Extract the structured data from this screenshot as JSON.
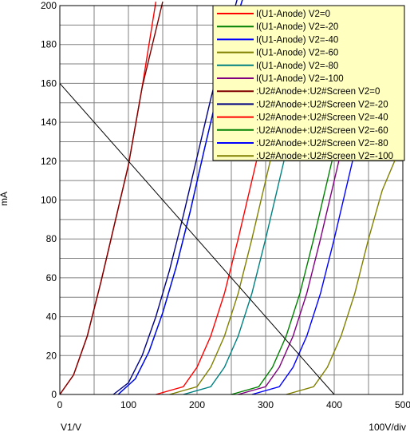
{
  "chart_data": {
    "type": "line",
    "title": "",
    "xlabel": "V1/V",
    "ylabel": "mA",
    "scale_label": "100V/div",
    "xlim": [
      0,
      500
    ],
    "ylim": [
      0,
      200
    ],
    "x_ticks": [
      "0",
      "100",
      "200",
      "300",
      "400",
      "500"
    ],
    "y_ticks": [
      "0",
      "20",
      "40",
      "60",
      "80",
      "100",
      "120",
      "140",
      "160",
      "180",
      "200"
    ],
    "grid": true,
    "legend_position": "top-right",
    "load_line": {
      "x": [
        0,
        400
      ],
      "y": [
        160,
        0
      ]
    },
    "series": [
      {
        "name": "I(U1-Anode) V2=0",
        "color": "#ff0000",
        "x": [
          0,
          20,
          40,
          60,
          80,
          100,
          120,
          140
        ],
        "y": [
          0,
          10,
          30,
          58,
          88,
          118,
          158,
          202
        ]
      },
      {
        "name": "I(U1-Anode) V2=-20",
        "color": "#008000",
        "x": [
          85,
          110,
          130,
          150,
          170,
          190,
          210,
          230,
          250,
          268
        ],
        "y": [
          0,
          8,
          22,
          42,
          66,
          94,
          125,
          155,
          185,
          205
        ]
      },
      {
        "name": "I(U1-Anode) V2=-40",
        "color": "#0000ff",
        "x": [
          85,
          110,
          130,
          150,
          170,
          190,
          210,
          230,
          250,
          268
        ],
        "y": [
          0,
          8,
          22,
          42,
          66,
          94,
          125,
          155,
          185,
          205
        ]
      },
      {
        "name": "I(U1-Anode) V2=-60",
        "color": "#808000",
        "x": [
          160,
          200,
          220,
          240,
          260,
          280,
          300,
          320
        ],
        "y": [
          0,
          4,
          14,
          30,
          52,
          80,
          110,
          140
        ]
      },
      {
        "name": "I(U1-Anode) V2=-80",
        "color": "#008080",
        "x": [
          180,
          220,
          240,
          260,
          280,
          300,
          320,
          340
        ],
        "y": [
          0,
          4,
          14,
          30,
          52,
          80,
          110,
          140
        ]
      },
      {
        "name": "I(U1-Anode) V2=-100",
        "color": "#800080",
        "x": [
          260,
          300,
          320,
          340,
          360,
          380,
          400,
          420
        ],
        "y": [
          0,
          4,
          14,
          30,
          52,
          80,
          110,
          140
        ]
      },
      {
        "name": ":U2#Anode+:U2#Screen V2=0",
        "color": "#800000",
        "x": [
          0,
          20,
          40,
          60,
          80,
          100,
          120,
          150
        ],
        "y": [
          0,
          10,
          30,
          58,
          88,
          118,
          158,
          202
        ]
      },
      {
        "name": ":U2#Anode+:U2#Screen V2=-20",
        "color": "#000080",
        "x": [
          78,
          100,
          120,
          140,
          160,
          180,
          200,
          220,
          240,
          260
        ],
        "y": [
          0,
          6,
          20,
          40,
          64,
          92,
          122,
          152,
          180,
          205
        ]
      },
      {
        "name": ":U2#Anode+:U2#Screen V2=-40",
        "color": "#ff0000",
        "x": [
          140,
          180,
          200,
          220,
          240,
          260,
          280,
          300
        ],
        "y": [
          0,
          4,
          14,
          30,
          52,
          80,
          110,
          140
        ]
      },
      {
        "name": ":U2#Anode+:U2#Screen V2=-60",
        "color": "#008000",
        "x": [
          250,
          290,
          310,
          330,
          350,
          370,
          390,
          410
        ],
        "y": [
          0,
          4,
          14,
          30,
          52,
          80,
          110,
          140
        ]
      },
      {
        "name": ":U2#Anode+:U2#Screen V2=-80",
        "color": "#0000ff",
        "x": [
          280,
          320,
          340,
          360,
          380,
          400,
          420,
          440
        ],
        "y": [
          0,
          4,
          14,
          30,
          52,
          80,
          110,
          140
        ]
      },
      {
        "name": ":U2#Anode+:U2#Screen V2=-100",
        "color": "#808000",
        "x": [
          330,
          370,
          390,
          410,
          430,
          450,
          470,
          500
        ],
        "y": [
          0,
          4,
          14,
          30,
          52,
          80,
          105,
          130
        ]
      }
    ],
    "colors": {
      "legend_background": "#ffffc0",
      "grid": "#808080",
      "load_line": "#000000"
    }
  }
}
